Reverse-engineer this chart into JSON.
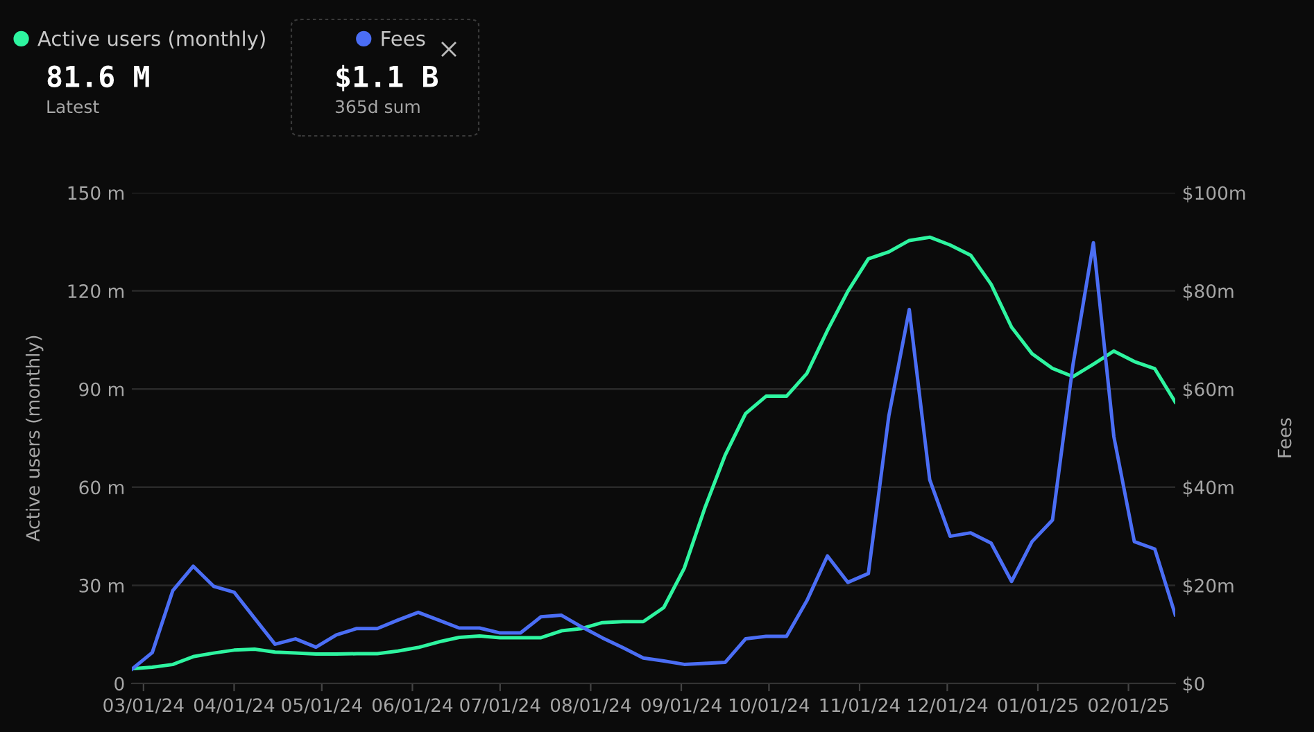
{
  "chart_data": {
    "type": "line",
    "x": [
      "2024-02-26",
      "2024-03-04",
      "2024-03-11",
      "2024-03-18",
      "2024-03-25",
      "2024-04-01",
      "2024-04-08",
      "2024-04-15",
      "2024-04-22",
      "2024-04-29",
      "2024-05-06",
      "2024-05-13",
      "2024-05-20",
      "2024-05-27",
      "2024-06-03",
      "2024-06-10",
      "2024-06-17",
      "2024-06-24",
      "2024-07-01",
      "2024-07-08",
      "2024-07-15",
      "2024-07-22",
      "2024-07-29",
      "2024-08-05",
      "2024-08-12",
      "2024-08-19",
      "2024-08-26",
      "2024-09-02",
      "2024-09-09",
      "2024-09-16",
      "2024-09-23",
      "2024-09-30",
      "2024-10-07",
      "2024-10-14",
      "2024-10-21",
      "2024-10-28",
      "2024-11-04",
      "2024-11-11",
      "2024-11-18",
      "2024-11-25",
      "2024-12-02",
      "2024-12-09",
      "2024-12-16",
      "2024-12-23",
      "2024-12-30",
      "2025-01-06",
      "2025-01-13",
      "2025-01-20",
      "2025-01-27",
      "2025-02-03",
      "2025-02-10",
      "2025-02-17"
    ],
    "series": [
      {
        "name": "Active users (monthly)",
        "color": "#2ef5a0",
        "values": [
          4.5,
          5.0,
          5.8,
          8.2,
          9.3,
          10.2,
          10.5,
          9.6,
          9.3,
          9.0,
          9.0,
          9.1,
          9.1,
          9.9,
          11.0,
          12.7,
          14.1,
          14.5,
          14.0,
          14.0,
          14.0,
          16.1,
          16.8,
          18.6,
          18.9,
          18.9,
          23.2,
          35.2,
          53.5,
          69.8,
          82.5,
          87.8,
          87.8,
          94.8,
          107.9,
          119.9,
          129.8,
          131.9,
          135.4,
          136.4,
          134.0,
          130.9,
          122.0,
          108.9,
          100.8,
          96.3,
          93.8,
          97.6,
          101.6,
          98.4,
          96.2,
          86.0
        ]
      },
      {
        "name": "Fees",
        "color": "#4b6ef5",
        "axis": "y2",
        "values": [
          2.9,
          6.3,
          18.9,
          23.9,
          19.8,
          18.6,
          13.3,
          8.0,
          9.1,
          7.4,
          9.9,
          11.2,
          11.2,
          12.9,
          14.5,
          12.9,
          11.3,
          11.3,
          10.3,
          10.3,
          13.6,
          13.9,
          11.5,
          9.3,
          7.3,
          5.2,
          4.6,
          3.9,
          4.1,
          4.3,
          9.1,
          9.6,
          9.6,
          16.9,
          26.0,
          20.6,
          22.4,
          54.5,
          76.2,
          41.5,
          30.0,
          30.7,
          28.6,
          20.8,
          28.9,
          33.3,
          64.9,
          89.8,
          50.3,
          28.9,
          27.4,
          14.0
        ]
      }
    ],
    "xlim": [
      "2024-02-26",
      "2025-02-17"
    ],
    "xticks": [
      {
        "value": "2024-03-01",
        "label": "03/01/24"
      },
      {
        "value": "2024-04-01",
        "label": "04/01/24"
      },
      {
        "value": "2024-05-01",
        "label": "05/01/24"
      },
      {
        "value": "2024-06-01",
        "label": "06/01/24"
      },
      {
        "value": "2024-07-01",
        "label": "07/01/24"
      },
      {
        "value": "2024-08-01",
        "label": "08/01/24"
      },
      {
        "value": "2024-09-01",
        "label": "09/01/24"
      },
      {
        "value": "2024-10-01",
        "label": "10/01/24"
      },
      {
        "value": "2024-11-01",
        "label": "11/01/24"
      },
      {
        "value": "2024-12-01",
        "label": "12/01/24"
      },
      {
        "value": "2025-01-01",
        "label": "01/01/25"
      },
      {
        "value": "2025-02-01",
        "label": "02/01/25"
      }
    ],
    "ylim": [
      0,
      150
    ],
    "yticks": [
      {
        "value": 0,
        "label": "0"
      },
      {
        "value": 30,
        "label": "30 m"
      },
      {
        "value": 60,
        "label": "60 m"
      },
      {
        "value": 90,
        "label": "90 m"
      },
      {
        "value": 120,
        "label": "120 m"
      },
      {
        "value": 150,
        "label": "150 m"
      }
    ],
    "y2lim": [
      0,
      100
    ],
    "y2ticks": [
      {
        "value": 0,
        "label": "$0"
      },
      {
        "value": 20,
        "label": "$20m"
      },
      {
        "value": 40,
        "label": "$40m"
      },
      {
        "value": 60,
        "label": "$60m"
      },
      {
        "value": 80,
        "label": "$80m"
      },
      {
        "value": 100,
        "label": "$100m"
      }
    ],
    "ylabel": "Active users (monthly)",
    "y2label": "Fees",
    "annotations": [
      "81.6 M",
      "Latest",
      "$1.1 B",
      "365d sum"
    ],
    "grid": "y",
    "legend": "top left",
    "marker": "none",
    "line_style": "solid"
  }
}
